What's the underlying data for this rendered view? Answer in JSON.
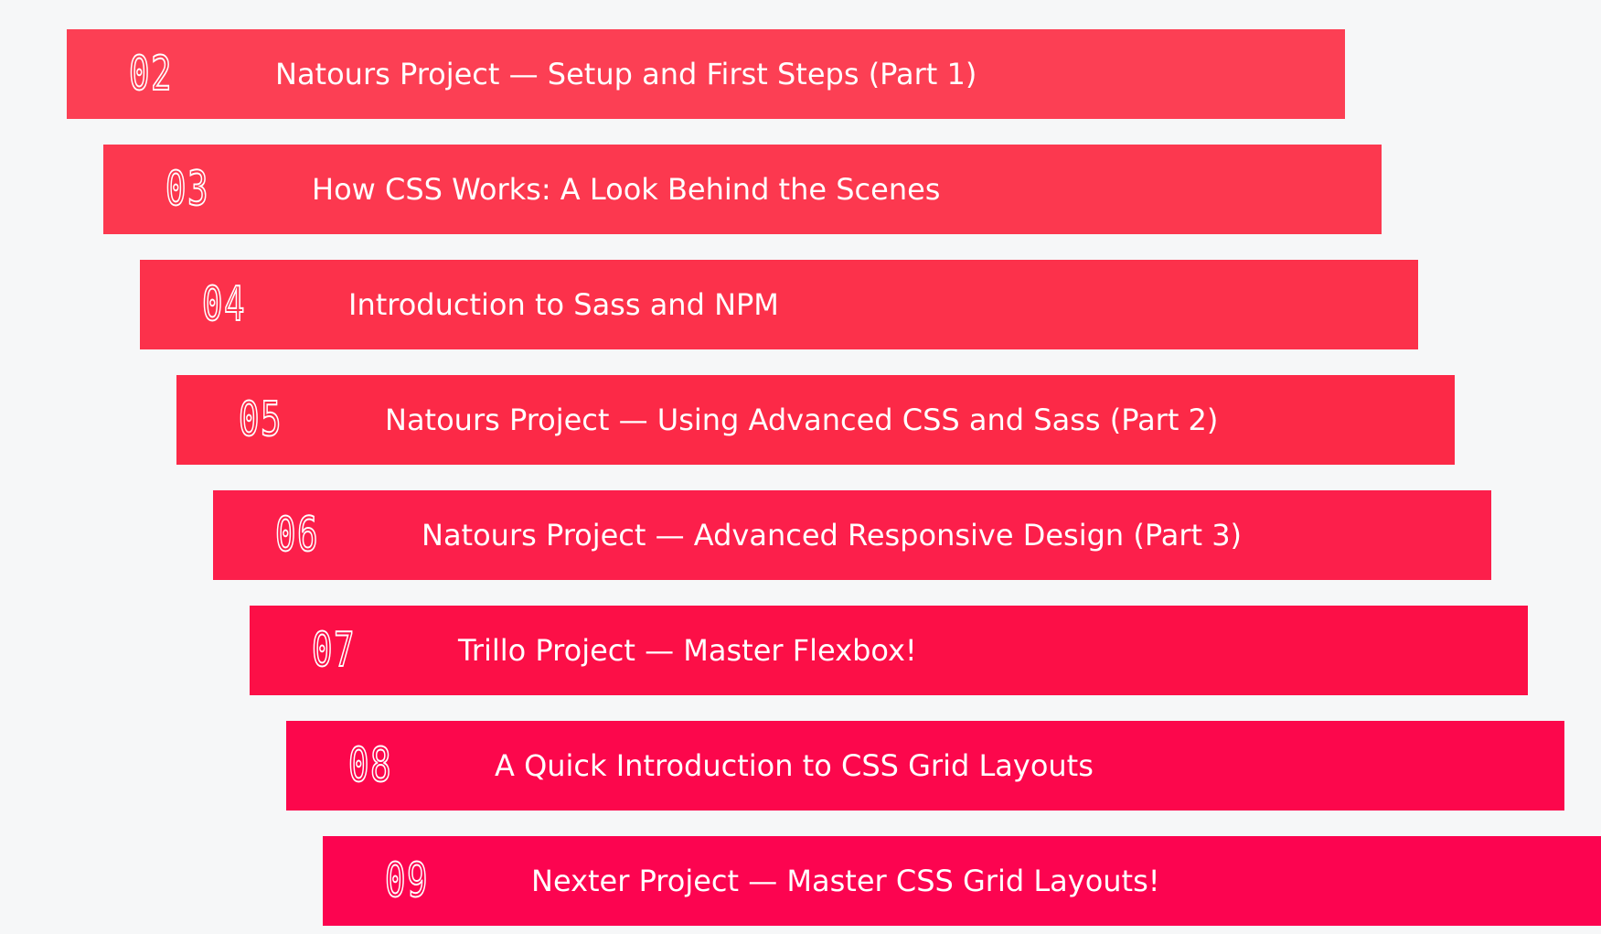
{
  "sections": [
    {
      "number": "02",
      "title": "Natours Project — Setup and First Steps (Part 1)",
      "color": "#fc3f54"
    },
    {
      "number": "03",
      "title": "How CSS Works: A Look Behind the Scenes",
      "color": "#fc384f"
    },
    {
      "number": "04",
      "title": "Introduction to Sass and NPM",
      "color": "#fc314b"
    },
    {
      "number": "05",
      "title": "Natours Project — Using Advanced CSS and Sass (Part 2)",
      "color": "#fc2947"
    },
    {
      "number": "06",
      "title": "Natours Project — Advanced Responsive Design (Part 3)",
      "color": "#fc1f4b"
    },
    {
      "number": "07",
      "title": "Trillo Project — Master Flexbox!",
      "color": "#fc0f47"
    },
    {
      "number": "08",
      "title": "A Quick Introduction to CSS Grid Layouts",
      "color": "#fc074c"
    },
    {
      "number": "09",
      "title": "Nexter Project — Master CSS Grid Layouts!",
      "color": "#fc0450"
    }
  ]
}
